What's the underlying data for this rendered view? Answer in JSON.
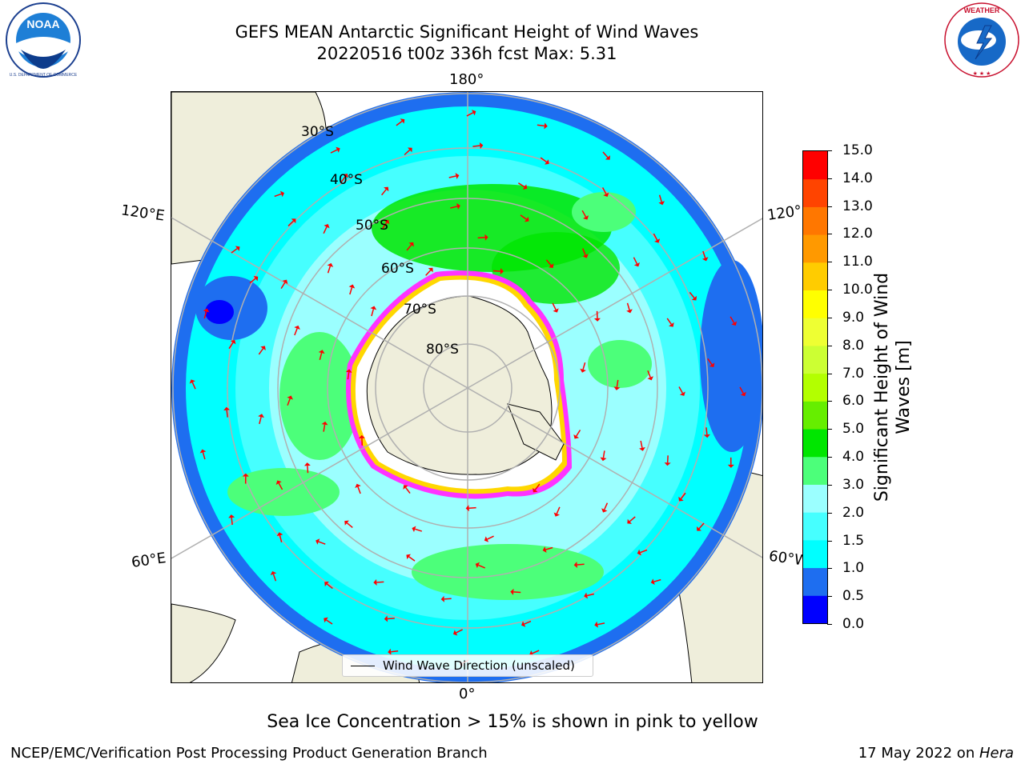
{
  "title": {
    "line1": "GEFS MEAN Antarctic Significant Height of Wind Waves",
    "line2": "20220516 t00z 336h fcst   Max: 5.31"
  },
  "logos": {
    "left": {
      "name": "NOAA",
      "ring_text": "NATIONAL OCEANIC AND ATMOSPHERIC ADMINISTRATION · U.S. DEPARTMENT OF COMMERCE"
    },
    "right": {
      "ring_text": "NATIONAL WEATHER SERVICE"
    }
  },
  "map": {
    "projection": "south-polar-stereographic",
    "lon_labels": {
      "top": "180°",
      "bottom": "0°",
      "left_upper": "120°E",
      "left_lower": "60°E",
      "right_upper": "120°",
      "right_lower": "60°W"
    },
    "lat_labels": [
      "30°S",
      "40°S",
      "50°S",
      "60°S",
      "70°S",
      "80°S"
    ],
    "legend": "Wind Wave Direction (unscaled)",
    "land_color": "#efeedb",
    "ice_edge_colors": [
      "#ff33ff",
      "#ffd700",
      "#ffff66"
    ],
    "arrow_color": "#ff0000"
  },
  "colorbar": {
    "title": "Significant Height of Wind Waves [m]",
    "ticks": [
      "0.0",
      "0.5",
      "1.0",
      "1.5",
      "2.0",
      "3.0",
      "4.0",
      "5.0",
      "6.0",
      "7.0",
      "8.0",
      "9.0",
      "10.0",
      "11.0",
      "12.0",
      "13.0",
      "14.0",
      "15.0"
    ],
    "colors": [
      "#0000ff",
      "#1e6ef0",
      "#00ffff",
      "#46ffff",
      "#9bffff",
      "#4cff7a",
      "#00e600",
      "#66ee00",
      "#b3ff00",
      "#ccff33",
      "#eeff33",
      "#ffff00",
      "#ffcc00",
      "#ff9900",
      "#ff7700",
      "#ff4400",
      "#ff0000"
    ]
  },
  "subnote": "Sea Ice Concentration > 15% is shown in pink to yellow",
  "footer": {
    "left": "NCEP/EMC/Verification Post Processing Product Generation Branch",
    "right_date": "17 May 2022 on ",
    "right_host": "Hera"
  }
}
